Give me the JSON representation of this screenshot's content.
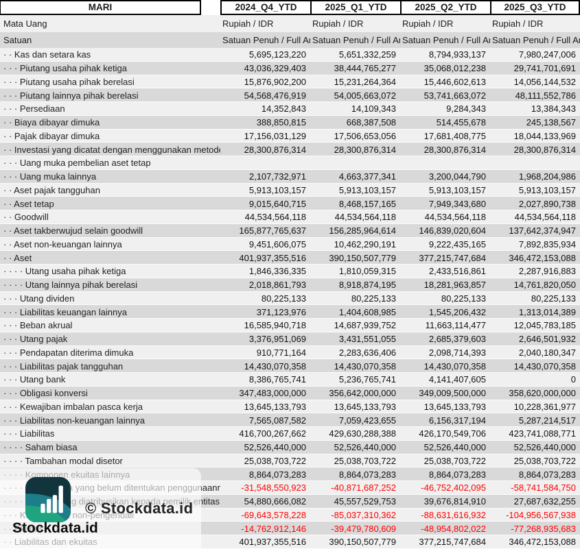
{
  "header": {
    "company": "MARI",
    "periods": [
      "2024_Q4_YTD",
      "2025_Q1_YTD",
      "2025_Q2_YTD",
      "2025_Q3_YTD"
    ],
    "currency": {
      "label": "Mata Uang",
      "values": [
        "Rupiah / IDR",
        "Rupiah / IDR",
        "Rupiah / IDR",
        "Rupiah / IDR"
      ]
    },
    "unit": {
      "label": "Satuan",
      "values": [
        "Satuan Penuh / Full Amount",
        "Satuan Penuh / Full Amount",
        "Satuan Penuh / Full Amount",
        "Satuan Penuh / Full Amount"
      ]
    }
  },
  "rows": [
    {
      "label": "· · Kas dan setara kas",
      "values": [
        "5,695,123,220",
        "5,651,332,259",
        "8,794,933,137",
        "7,980,247,006"
      ]
    },
    {
      "label": "· · · Piutang usaha pihak ketiga",
      "values": [
        "43,036,329,403",
        "38,444,765,277",
        "35,068,012,238",
        "29,741,701,691"
      ]
    },
    {
      "label": "· · · Piutang usaha pihak berelasi",
      "values": [
        "15,876,902,200",
        "15,231,264,364",
        "15,446,602,613",
        "14,056,144,532"
      ]
    },
    {
      "label": "· · · Piutang lainnya pihak berelasi",
      "values": [
        "54,568,476,919",
        "54,005,663,072",
        "53,741,663,072",
        "48,111,552,786"
      ]
    },
    {
      "label": "· · · Persediaan",
      "values": [
        "14,352,843",
        "14,109,343",
        "9,284,343",
        "13,384,343"
      ]
    },
    {
      "label": "· · Biaya dibayar dimuka",
      "values": [
        "388,850,815",
        "668,387,508",
        "514,455,678",
        "245,138,567"
      ]
    },
    {
      "label": "· · Pajak dibayar dimuka",
      "values": [
        "17,156,031,129",
        "17,506,653,056",
        "17,681,408,775",
        "18,044,133,969"
      ]
    },
    {
      "label": "· · Investasi yang dicatat dengan menggunakan metode ekuitas",
      "values": [
        "28,300,876,314",
        "28,300,876,314",
        "28,300,876,314",
        "28,300,876,314"
      ]
    },
    {
      "label": "· · · Uang muka pembelian aset tetap",
      "values": [
        "",
        "",
        "",
        ""
      ]
    },
    {
      "label": "· · · Uang muka lainnya",
      "values": [
        "2,107,732,971",
        "4,663,377,341",
        "3,200,044,790",
        "1,968,204,986"
      ]
    },
    {
      "label": "· · Aset pajak tangguhan",
      "values": [
        "5,913,103,157",
        "5,913,103,157",
        "5,913,103,157",
        "5,913,103,157"
      ]
    },
    {
      "label": "· · Aset tetap",
      "values": [
        "9,015,640,715",
        "8,468,157,165",
        "7,949,343,680",
        "2,027,890,738"
      ]
    },
    {
      "label": "· · Goodwill",
      "values": [
        "44,534,564,118",
        "44,534,564,118",
        "44,534,564,118",
        "44,534,564,118"
      ]
    },
    {
      "label": "· · Aset takberwujud selain goodwill",
      "values": [
        "165,877,765,637",
        "156,285,964,614",
        "146,839,020,604",
        "137,642,374,947"
      ]
    },
    {
      "label": "· · Aset non-keuangan lainnya",
      "values": [
        "9,451,606,075",
        "10,462,290,191",
        "9,222,435,165",
        "7,892,835,934"
      ]
    },
    {
      "label": "· · Aset",
      "values": [
        "401,937,355,516",
        "390,150,507,779",
        "377,215,747,684",
        "346,472,153,088"
      ]
    },
    {
      "label": "· · · · Utang usaha pihak ketiga",
      "values": [
        "1,846,336,335",
        "1,810,059,315",
        "2,433,516,861",
        "2,287,916,883"
      ]
    },
    {
      "label": "· · · · Utang lainnya pihak berelasi",
      "values": [
        "2,018,861,793",
        "8,918,874,195",
        "18,281,963,857",
        "14,761,820,050"
      ]
    },
    {
      "label": "· · · Utang dividen",
      "values": [
        "80,225,133",
        "80,225,133",
        "80,225,133",
        "80,225,133"
      ]
    },
    {
      "label": "· · · Liabilitas keuangan lainnya",
      "values": [
        "371,123,976",
        "1,404,608,985",
        "1,545,206,432",
        "1,313,014,389"
      ]
    },
    {
      "label": "· · · Beban akrual",
      "values": [
        "16,585,940,718",
        "14,687,939,752",
        "11,663,114,477",
        "12,045,783,185"
      ]
    },
    {
      "label": "· · · Utang pajak",
      "values": [
        "3,376,951,069",
        "3,431,551,055",
        "2,685,379,603",
        "2,646,501,932"
      ]
    },
    {
      "label": "· · · Pendapatan diterima dimuka",
      "values": [
        "910,771,164",
        "2,283,636,406",
        "2,098,714,393",
        "2,040,180,347"
      ]
    },
    {
      "label": "· · · Liabilitas pajak tangguhan",
      "values": [
        "14,430,070,358",
        "14,430,070,358",
        "14,430,070,358",
        "14,430,070,358"
      ]
    },
    {
      "label": "· · · Utang bank",
      "values": [
        "8,386,765,741",
        "5,236,765,741",
        "4,141,407,605",
        "0"
      ]
    },
    {
      "label": "· · · Obligasi konversi",
      "values": [
        "347,483,000,000",
        "356,642,000,000",
        "349,009,500,000",
        "358,620,000,000"
      ]
    },
    {
      "label": "· · · Kewajiban imbalan pasca kerja",
      "values": [
        "13,645,133,793",
        "13,645,133,793",
        "13,645,133,793",
        "10,228,361,977"
      ]
    },
    {
      "label": "· · · Liabilitas non-keuangan lainnya",
      "values": [
        "7,565,087,582",
        "7,059,423,655",
        "6,156,317,194",
        "5,287,214,517"
      ]
    },
    {
      "label": "· · · Liabilitas",
      "values": [
        "416,700,267,662",
        "429,630,288,388",
        "426,170,549,706",
        "423,741,088,771"
      ]
    },
    {
      "label": "· · · · Saham biasa",
      "values": [
        "52,526,440,000",
        "52,526,440,000",
        "52,526,440,000",
        "52,526,440,000"
      ]
    },
    {
      "label": "· · · · Tambahan modal disetor",
      "values": [
        "25,038,703,722",
        "25,038,703,722",
        "25,038,703,722",
        "25,038,703,722"
      ]
    },
    {
      "label": "· · · · Komponen ekuitas lainnya",
      "values": [
        "8,864,073,283",
        "8,864,073,283",
        "8,864,073,283",
        "8,864,073,283"
      ]
    },
    {
      "label": "· · · · · Saldo laba yang belum ditentukan penggunaannya",
      "values": [
        "-31,548,550,923",
        "-40,871,687,252",
        "-46,752,402,095",
        "-58,741,584,750"
      ]
    },
    {
      "label": "· · · · Ekuitas yang diatribusikan kepada pemilik entitas induk",
      "values": [
        "54,880,666,082",
        "45,557,529,753",
        "39,676,814,910",
        "27,687,632,255"
      ]
    },
    {
      "label": "· · · Kepentingan non-pengendali",
      "values": [
        "-69,643,578,228",
        "-85,037,310,362",
        "-88,631,616,932",
        "-104,956,567,938"
      ]
    },
    {
      "label": "· · Ekuitas",
      "values": [
        "-14,762,912,146",
        "-39,479,780,609",
        "-48,954,802,022",
        "-77,268,935,683"
      ]
    },
    {
      "label": "· · Liabilitas dan ekuitas",
      "values": [
        "401,937,355,516",
        "390,150,507,779",
        "377,215,747,684",
        "346,472,153,088"
      ]
    }
  ],
  "watermark": {
    "copyright": "© Stockdata.id",
    "brand": "Stockdata.id",
    "logo": "stockdata-leaf-barchart-logo"
  },
  "colors": {
    "stripe_light": "#f0f0f0",
    "stripe_dark": "#d9d9d9",
    "negative_value": "#ff0000",
    "border": "#000000",
    "logo_dark_teal": "#12343c",
    "logo_teal": "#1d7d89",
    "logo_green": "#1fa47f"
  }
}
